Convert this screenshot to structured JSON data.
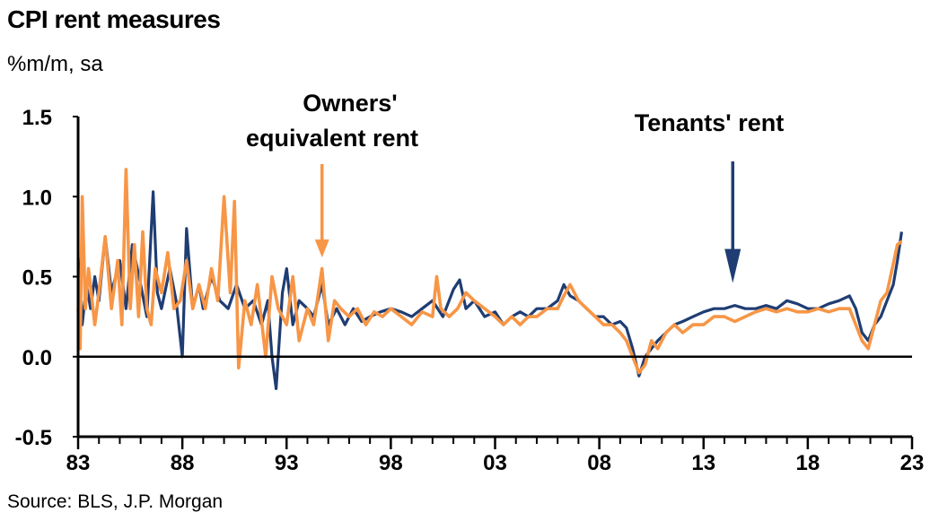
{
  "title": "CPI rent measures",
  "subtitle": "%m/m, sa",
  "source": "Source: BLS, J.P. Morgan",
  "colors": {
    "tenants": "#1F3D73",
    "owners": "#F79646",
    "axis": "#000000"
  },
  "chart_data": {
    "type": "line",
    "title": "CPI rent measures",
    "ylabel": "%m/m, sa",
    "xlim": [
      1983,
      2023
    ],
    "ylim": [
      -0.5,
      1.5
    ],
    "yticks": [
      1.5,
      1.0,
      0.5,
      0.0,
      -0.5
    ],
    "ytick_labels": [
      "1.5",
      "1.0",
      "0.5",
      "0.0",
      "-0.5"
    ],
    "xticks": [
      1983,
      1988,
      1993,
      1998,
      2003,
      2008,
      2013,
      2018,
      2023
    ],
    "xtick_labels": [
      "83",
      "88",
      "93",
      "98",
      "03",
      "08",
      "13",
      "18",
      "23"
    ],
    "grid": false,
    "legend": "none",
    "annotations": [
      {
        "text_lines": [
          "Owners'",
          "equivalent rent"
        ],
        "arrow_at_x": 1994.7,
        "arrow_at_y": 0.62,
        "series": "Owners' equivalent rent"
      },
      {
        "text_lines": [
          "Tenants' rent"
        ],
        "arrow_at_x": 2014.4,
        "arrow_at_y": 0.46,
        "series": "Tenants' rent"
      }
    ],
    "series": [
      {
        "name": "Tenants' rent",
        "color": "#1F3D73",
        "x": [
          1983.0,
          1983.2,
          1983.4,
          1983.6,
          1983.8,
          1984.0,
          1984.3,
          1984.6,
          1985.0,
          1985.3,
          1985.6,
          1986.0,
          1986.3,
          1986.6,
          1986.8,
          1987.0,
          1987.4,
          1987.7,
          1988.0,
          1988.2,
          1988.5,
          1988.8,
          1989.0,
          1989.4,
          1989.8,
          1990.2,
          1990.6,
          1991.0,
          1991.4,
          1991.8,
          1992.1,
          1992.3,
          1992.5,
          1992.8,
          1993.0,
          1993.3,
          1993.6,
          1994.0,
          1994.3,
          1994.7,
          1995.0,
          1995.4,
          1995.8,
          1996.2,
          1996.6,
          1997.0,
          1997.5,
          1998.0,
          1998.5,
          1999.0,
          1999.5,
          2000.0,
          2000.5,
          2001.0,
          2001.3,
          2001.6,
          2002.0,
          2002.5,
          2003.0,
          2003.4,
          2003.8,
          2004.2,
          2004.6,
          2005.0,
          2005.5,
          2006.0,
          2006.3,
          2006.6,
          2007.0,
          2007.4,
          2007.8,
          2008.2,
          2008.6,
          2009.0,
          2009.3,
          2009.6,
          2009.9,
          2010.2,
          2010.5,
          2010.8,
          2011.2,
          2011.6,
          2012.0,
          2012.5,
          2013.0,
          2013.5,
          2014.0,
          2014.5,
          2015.0,
          2015.5,
          2016.0,
          2016.5,
          2017.0,
          2017.5,
          2018.0,
          2018.5,
          2019.0,
          2019.5,
          2020.0,
          2020.3,
          2020.6,
          2020.9,
          2021.2,
          2021.5,
          2021.8,
          2022.1,
          2022.3,
          2022.5
        ],
        "y": [
          0.62,
          0.2,
          0.45,
          0.3,
          0.5,
          0.35,
          0.75,
          0.4,
          0.6,
          0.3,
          0.7,
          0.45,
          0.25,
          1.03,
          0.4,
          0.3,
          0.55,
          0.35,
          0.0,
          0.8,
          0.3,
          0.45,
          0.3,
          0.5,
          0.35,
          0.3,
          0.45,
          0.3,
          0.35,
          0.2,
          0.35,
          0.0,
          -0.2,
          0.4,
          0.55,
          0.2,
          0.35,
          0.3,
          0.25,
          0.45,
          0.2,
          0.3,
          0.2,
          0.3,
          0.22,
          0.25,
          0.28,
          0.3,
          0.28,
          0.25,
          0.3,
          0.35,
          0.25,
          0.42,
          0.48,
          0.3,
          0.35,
          0.25,
          0.28,
          0.2,
          0.25,
          0.28,
          0.25,
          0.3,
          0.3,
          0.35,
          0.45,
          0.38,
          0.35,
          0.3,
          0.25,
          0.25,
          0.2,
          0.22,
          0.18,
          0.05,
          -0.12,
          0.0,
          0.05,
          0.1,
          0.15,
          0.2,
          0.22,
          0.25,
          0.28,
          0.3,
          0.3,
          0.32,
          0.3,
          0.3,
          0.32,
          0.3,
          0.35,
          0.33,
          0.3,
          0.3,
          0.33,
          0.35,
          0.38,
          0.3,
          0.15,
          0.1,
          0.2,
          0.25,
          0.35,
          0.45,
          0.6,
          0.78
        ]
      },
      {
        "name": "Owners' equivalent rent",
        "color": "#F79646",
        "x": [
          1983.0,
          1983.1,
          1983.2,
          1983.35,
          1983.5,
          1983.8,
          1984.0,
          1984.3,
          1984.6,
          1984.9,
          1985.1,
          1985.3,
          1985.5,
          1985.7,
          1985.9,
          1986.1,
          1986.3,
          1986.5,
          1986.7,
          1987.0,
          1987.3,
          1987.6,
          1987.9,
          1988.2,
          1988.5,
          1988.8,
          1989.1,
          1989.4,
          1989.7,
          1990.0,
          1990.3,
          1990.5,
          1990.7,
          1991.0,
          1991.3,
          1991.6,
          1992.0,
          1992.3,
          1992.6,
          1993.0,
          1993.3,
          1993.6,
          1994.0,
          1994.3,
          1994.7,
          1995.0,
          1995.3,
          1995.6,
          1996.0,
          1996.4,
          1996.8,
          1997.2,
          1997.6,
          1998.0,
          1998.5,
          1999.0,
          1999.5,
          2000.0,
          2000.2,
          2000.4,
          2000.8,
          2001.2,
          2001.6,
          2002.0,
          2002.5,
          2003.0,
          2003.4,
          2003.8,
          2004.2,
          2004.6,
          2005.0,
          2005.5,
          2006.0,
          2006.3,
          2006.6,
          2007.0,
          2007.4,
          2007.8,
          2008.2,
          2008.6,
          2009.0,
          2009.3,
          2009.6,
          2009.9,
          2010.2,
          2010.5,
          2010.8,
          2011.2,
          2011.6,
          2012.0,
          2012.5,
          2013.0,
          2013.5,
          2014.0,
          2014.5,
          2015.0,
          2015.5,
          2016.0,
          2016.5,
          2017.0,
          2017.5,
          2018.0,
          2018.5,
          2019.0,
          2019.5,
          2020.0,
          2020.3,
          2020.6,
          2020.9,
          2021.2,
          2021.5,
          2021.8,
          2022.1,
          2022.3,
          2022.5
        ],
        "y": [
          0.3,
          0.05,
          1.0,
          0.3,
          0.55,
          0.2,
          0.4,
          0.75,
          0.3,
          0.6,
          0.2,
          1.17,
          0.3,
          0.7,
          0.25,
          0.78,
          0.3,
          0.2,
          0.55,
          0.4,
          0.65,
          0.3,
          0.35,
          0.6,
          0.3,
          0.45,
          0.3,
          0.55,
          0.35,
          1.0,
          0.4,
          0.97,
          -0.07,
          0.35,
          0.2,
          0.45,
          0.0,
          0.5,
          0.3,
          0.2,
          0.5,
          0.1,
          0.3,
          0.2,
          0.55,
          0.1,
          0.35,
          0.3,
          0.25,
          0.3,
          0.2,
          0.28,
          0.25,
          0.3,
          0.25,
          0.2,
          0.28,
          0.25,
          0.5,
          0.3,
          0.25,
          0.3,
          0.4,
          0.35,
          0.3,
          0.25,
          0.2,
          0.25,
          0.2,
          0.25,
          0.25,
          0.3,
          0.3,
          0.38,
          0.45,
          0.35,
          0.3,
          0.25,
          0.2,
          0.2,
          0.15,
          0.1,
          0.0,
          -0.1,
          -0.05,
          0.1,
          0.05,
          0.15,
          0.2,
          0.15,
          0.2,
          0.2,
          0.25,
          0.25,
          0.22,
          0.25,
          0.28,
          0.3,
          0.28,
          0.3,
          0.28,
          0.28,
          0.3,
          0.28,
          0.3,
          0.3,
          0.2,
          0.1,
          0.05,
          0.2,
          0.35,
          0.4,
          0.58,
          0.7,
          0.72
        ]
      }
    ]
  }
}
